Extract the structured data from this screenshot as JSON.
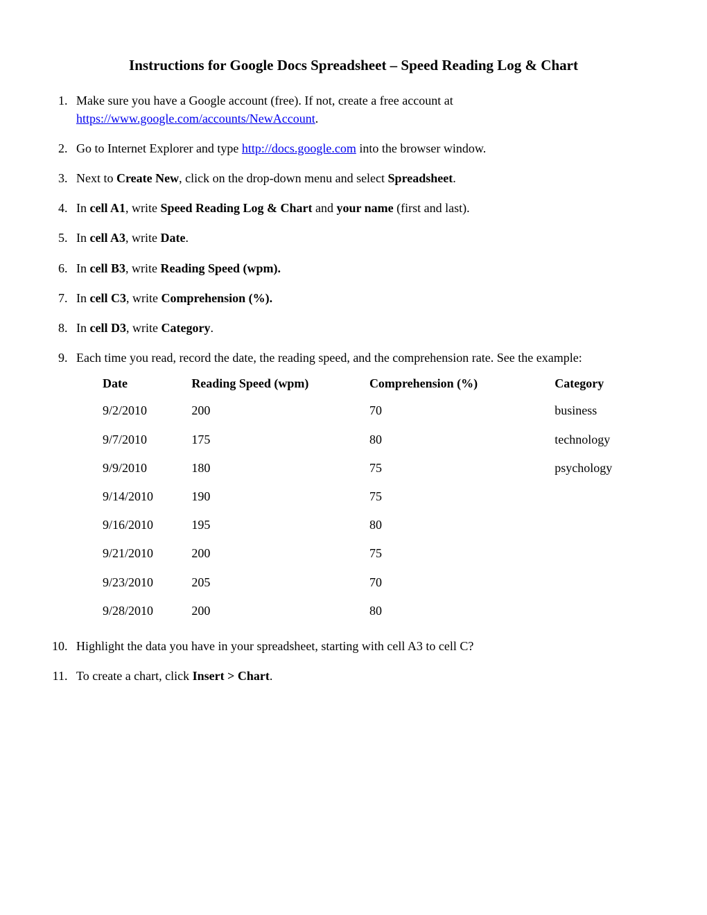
{
  "title": "Instructions for Google Docs Spreadsheet – Speed Reading Log & Chart",
  "links": {
    "google_account": "https://www.google.com/accounts/NewAccount",
    "google_docs": "http://docs.google.com"
  },
  "steps": {
    "s1_a": "Make sure you have a Google account (free).  If not, create a free account at ",
    "s1_b": ".",
    "s2_a": "Go to Internet Explorer and type ",
    "s2_b": " into the browser window.",
    "s3_a": "Next to ",
    "s3_b": "Create New",
    "s3_c": ", click on the drop-down menu and select ",
    "s3_d": "Spreadsheet",
    "s3_e": ".",
    "s4_a": "In ",
    "s4_b": "cell A1",
    "s4_c": ", write ",
    "s4_d": "Speed Reading Log & Chart",
    "s4_e": " and ",
    "s4_f": "your name",
    "s4_g": " (first and last).",
    "s5_a": "In ",
    "s5_b": "cell A3",
    "s5_c": ", write ",
    "s5_d": "Date",
    "s5_e": ".",
    "s6_a": "In ",
    "s6_b": "cell B3",
    "s6_c": ", write ",
    "s6_d": "Reading Speed (wpm).",
    "s7_a": "In ",
    "s7_b": "cell C3",
    "s7_c": ", write ",
    "s7_d": "Comprehension (%).",
    "s8_a": "In ",
    "s8_b": "cell D3",
    "s8_c": ", write ",
    "s8_d": "Category",
    "s8_e": ".",
    "s9": "Each time you read, record the date, the reading speed, and the comprehension rate.  See the example:",
    "s10": "Highlight the data you have in your spreadsheet, starting with cell A3 to cell C?",
    "s11_a": "To create a chart, click ",
    "s11_b": "Insert > Chart",
    "s11_c": "."
  },
  "table": {
    "headers": {
      "date": "Date",
      "speed": "Reading Speed (wpm)",
      "comp": "Comprehension (%)",
      "cat": "Category"
    },
    "rows": [
      {
        "date": "9/2/2010",
        "speed": "200",
        "comp": "70",
        "cat": "business"
      },
      {
        "date": "9/7/2010",
        "speed": "175",
        "comp": "80",
        "cat": "technology"
      },
      {
        "date": "9/9/2010",
        "speed": "180",
        "comp": "75",
        "cat": "psychology"
      },
      {
        "date": "9/14/2010",
        "speed": "190",
        "comp": "75",
        "cat": ""
      },
      {
        "date": "9/16/2010",
        "speed": "195",
        "comp": "80",
        "cat": ""
      },
      {
        "date": "9/21/2010",
        "speed": "200",
        "comp": "75",
        "cat": ""
      },
      {
        "date": "9/23/2010",
        "speed": "205",
        "comp": "70",
        "cat": ""
      },
      {
        "date": "9/28/2010",
        "speed": "200",
        "comp": "80",
        "cat": ""
      }
    ]
  }
}
